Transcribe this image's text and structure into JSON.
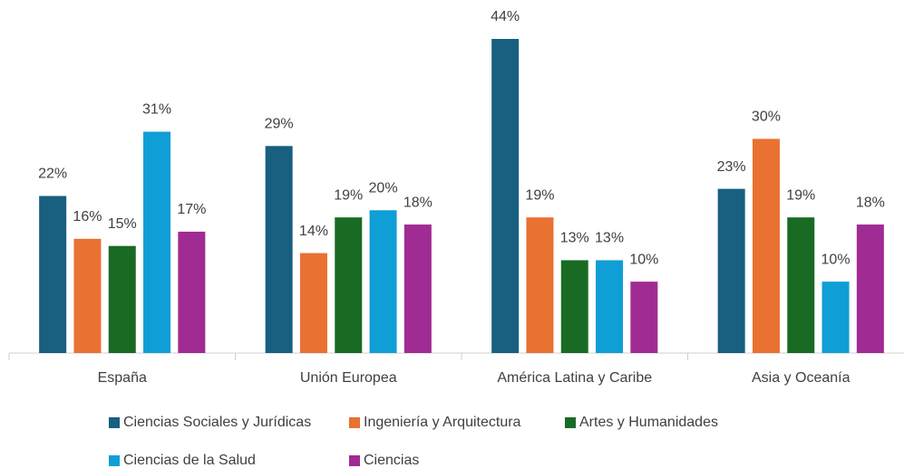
{
  "chart_data": {
    "type": "bar",
    "categories": [
      "España",
      "Unión Europea",
      "América Latina y Caribe",
      "Asia y Oceanía"
    ],
    "series": [
      {
        "name": "Ciencias Sociales y Jurídicas",
        "color": "#185f80",
        "values": [
          22,
          29,
          44,
          23
        ],
        "value_labels": [
          "22%",
          "29%",
          "44%",
          "23%"
        ]
      },
      {
        "name": "Ingeniería y Arquitectura",
        "color": "#e97132",
        "values": [
          16,
          14,
          19,
          30
        ],
        "value_labels": [
          "16%",
          "14%",
          "19%",
          "30%"
        ]
      },
      {
        "name": "Artes y Humanidades",
        "color": "#196b24",
        "values": [
          15,
          19,
          13,
          19
        ],
        "value_labels": [
          "15%",
          "19%",
          "13%",
          "19%"
        ]
      },
      {
        "name": "Ciencias de la Salud",
        "color": "#0f9ed5",
        "values": [
          31,
          20,
          13,
          10
        ],
        "value_labels": [
          "31%",
          "20%",
          "13%",
          "10%"
        ]
      },
      {
        "name": "Ciencias",
        "color": "#a02b93",
        "values": [
          17,
          18,
          10,
          18
        ],
        "value_labels": [
          "17%",
          "18%",
          "10%",
          "18%"
        ]
      }
    ],
    "legend": "bottom"
  }
}
